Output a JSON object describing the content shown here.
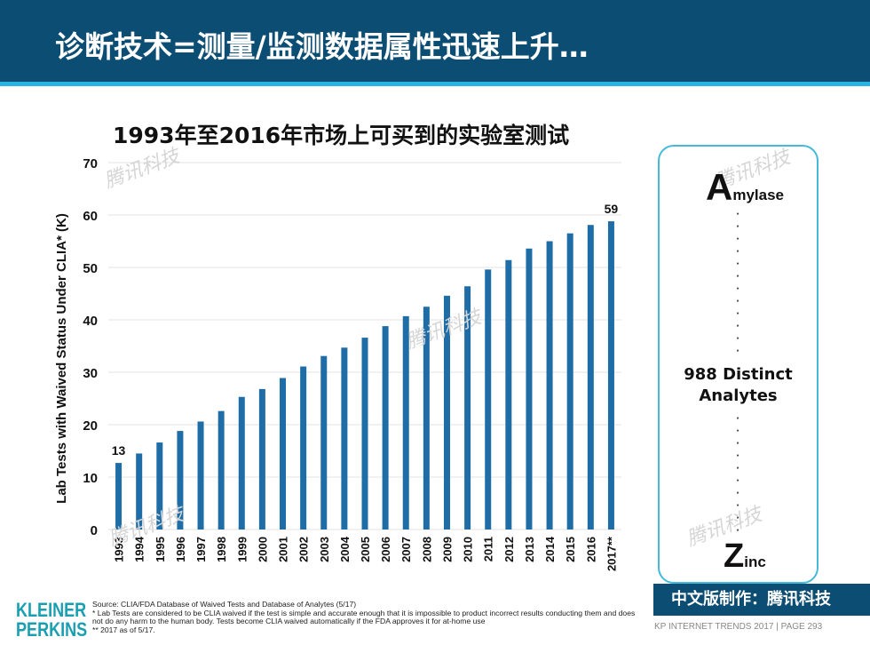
{
  "header": {
    "title": "诊断技术=测量/监测数据属性迅速上升…"
  },
  "chart_data": {
    "type": "bar",
    "title": "1993年至2016年市场上可买到的实验室测试",
    "ylabel": "Lab Tests with Waived Status Under CLIA* (K)",
    "xlabel": "",
    "ylim": [
      0,
      70
    ],
    "yticks": [
      0,
      10,
      20,
      30,
      40,
      50,
      60,
      70
    ],
    "grid": true,
    "categories": [
      "1993",
      "1994",
      "1995",
      "1996",
      "1997",
      "1998",
      "1999",
      "2000",
      "2001",
      "2002",
      "2003",
      "2004",
      "2005",
      "2006",
      "2007",
      "2008",
      "2009",
      "2010",
      "2011",
      "2012",
      "2013",
      "2014",
      "2015",
      "2016",
      "2017**"
    ],
    "values": [
      12.7,
      14.5,
      16.6,
      18.8,
      20.6,
      22.6,
      25.3,
      26.8,
      28.9,
      31.1,
      33.1,
      34.7,
      36.6,
      38.8,
      40.7,
      42.5,
      44.6,
      46.4,
      49.6,
      51.4,
      53.6,
      55.0,
      56.5,
      58.1,
      58.8
    ],
    "data_labels": [
      {
        "index": 0,
        "text": "13"
      },
      {
        "index": 24,
        "text": "59"
      }
    ],
    "colors": {
      "bar": "#1f6da6"
    }
  },
  "side_panel": {
    "first_letter": "A",
    "first_rest": "mylase",
    "middle": [
      "988 Distinct",
      "Analytes"
    ],
    "last_letter": "Z",
    "last_rest": "inc"
  },
  "watermark": "腾讯科技",
  "logo": [
    "KLEINER",
    "PERKINS"
  ],
  "source": {
    "line1": "Source: CLIA/FDA Database of Waived Tests and Database of Analytes (5/17)",
    "line2": "* Lab Tests are considered to be CLIA waived if the test is simple and accurate enough that it is impossible to product incorrect results conducting them and does not do any harm to the human body. Tests become CLIA waived automatically if the FDA approves it for at-home use",
    "line3": "** 2017 as of 5/17."
  },
  "badge": "中文版制作：腾讯科技",
  "footer": "KP INTERNET TRENDS 2017   |   PAGE 293",
  "colors": {
    "header": "#0c4d73",
    "accent": "#27b3e4",
    "logo": "#1a9fb0"
  }
}
